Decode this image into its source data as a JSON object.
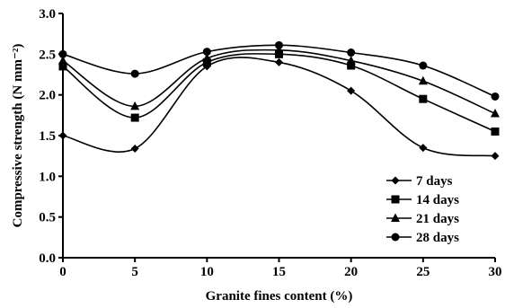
{
  "chart_data": {
    "type": "line",
    "xlabel": "Granite fines content (%)",
    "ylabel": "Compressive strength (N mm⁻²)",
    "xlim": [
      0,
      30
    ],
    "ylim": [
      0.0,
      3.0
    ],
    "x_ticks": [
      "0",
      "5",
      "10",
      "15",
      "20",
      "25",
      "30"
    ],
    "y_ticks": [
      "0.0",
      "0.5",
      "1.0",
      "1.5",
      "2.0",
      "2.5",
      "3.0"
    ],
    "x": [
      0,
      5,
      10,
      15,
      20,
      25,
      30
    ],
    "grid": false,
    "legend_position": "bottom-right",
    "series": [
      {
        "name": "7 days",
        "marker": "diamond",
        "values": [
          1.5,
          1.34,
          2.35,
          2.4,
          2.05,
          1.35,
          1.25
        ]
      },
      {
        "name": "14 days",
        "marker": "square",
        "values": [
          2.35,
          1.72,
          2.4,
          2.5,
          2.36,
          1.95,
          1.55
        ]
      },
      {
        "name": "21 days",
        "marker": "triangle",
        "values": [
          2.42,
          1.86,
          2.45,
          2.55,
          2.42,
          2.17,
          1.77
        ]
      },
      {
        "name": "28 days",
        "marker": "circle",
        "values": [
          2.5,
          2.26,
          2.53,
          2.61,
          2.52,
          2.36,
          1.98
        ]
      }
    ]
  }
}
